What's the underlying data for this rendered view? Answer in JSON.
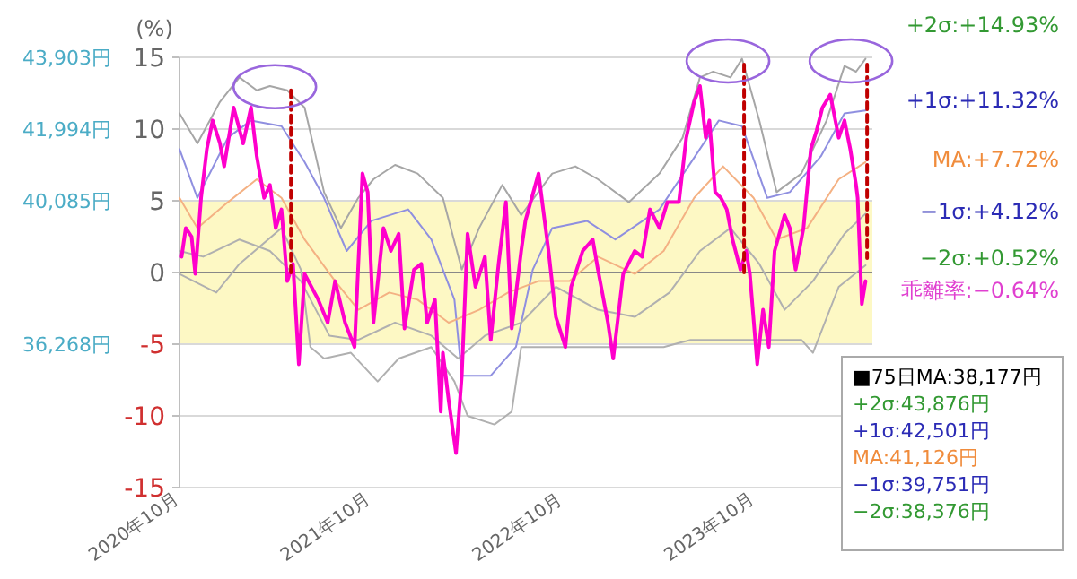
{
  "chart_data": {
    "type": "line",
    "ylabel": "(%)",
    "xlim": [
      "2020-10-01",
      "2024-05-11"
    ],
    "ylim": [
      -15,
      15
    ],
    "yticks": [
      -15,
      -10,
      -5,
      0,
      5,
      10,
      15
    ],
    "xticks": [
      {
        "value": "2020-10-01",
        "label": "2020年10月"
      },
      {
        "value": "2021-10-01",
        "label": "2021年10月"
      },
      {
        "value": "2022-10-01",
        "label": "2022年10月"
      },
      {
        "value": "2023-10-01",
        "label": "2023年10月"
      }
    ],
    "y2lim": [
      32450,
      43904
    ],
    "y2ticks": [
      {
        "value": 43903,
        "label": "43,903円"
      },
      {
        "value": 41994,
        "label": "41,994円"
      },
      {
        "value": 40085,
        "label": "40,085円"
      },
      {
        "value": 36268,
        "label": "36,268円"
      }
    ],
    "grid": "y",
    "bands": [
      {
        "axis": "y",
        "from": -5,
        "to": 5,
        "color": "#fdf8c4"
      }
    ],
    "series": [
      {
        "color": "#a6a6a6",
        "x": [
          "2020-10-01",
          "2020-11-04",
          "2020-12-17",
          "2021-01-23",
          "2021-02-25",
          "2021-03-22",
          "2021-04-24",
          "2021-05-27",
          "2021-07-03",
          "2021-08-04",
          "2021-09-06",
          "2021-10-05",
          "2021-11-15",
          "2021-12-28",
          "2022-02-14",
          "2022-03-22",
          "2022-04-24",
          "2022-06-07",
          "2022-07-13",
          "2022-09-10",
          "2022-10-24",
          "2022-12-06",
          "2023-02-03",
          "2023-04-02",
          "2023-05-16",
          "2023-06-18",
          "2023-07-13",
          "2023-08-15",
          "2023-09-06",
          "2023-10-09",
          "2023-11-11",
          "2023-12-28",
          "2024-02-14",
          "2024-03-19",
          "2024-04-10",
          "2024-04-28"
        ],
        "values": [
          11.1,
          9,
          11.9,
          13.6,
          12.7,
          13,
          12.7,
          11.5,
          5.6,
          3.1,
          5.2,
          6.5,
          7.5,
          6.9,
          5.2,
          0.2,
          3.1,
          6.1,
          4,
          6.9,
          7.4,
          6.5,
          4.9,
          6.9,
          9.4,
          13.6,
          14,
          13.6,
          14.9,
          10.6,
          5.6,
          6.9,
          10.6,
          14.4,
          14,
          14.9
        ]
      },
      {
        "color": "#8f8fe0",
        "x": [
          "2020-10-01",
          "2020-11-04",
          "2021-01-01",
          "2021-02-14",
          "2021-04-13",
          "2021-05-27",
          "2021-07-03",
          "2021-08-15",
          "2021-10-01",
          "2021-12-10",
          "2022-01-23",
          "2022-03-08",
          "2022-03-22",
          "2022-05-16",
          "2022-07-03",
          "2022-08-04",
          "2022-09-10",
          "2022-11-15",
          "2023-01-08",
          "2023-04-02",
          "2023-05-27",
          "2023-07-24",
          "2023-09-06",
          "2023-10-24",
          "2023-12-06",
          "2024-02-03",
          "2024-03-19",
          "2024-04-28"
        ],
        "values": [
          8.6,
          5.2,
          9.4,
          10.6,
          10.2,
          7.7,
          5.2,
          1.5,
          3.6,
          4.4,
          2.3,
          -1.9,
          -7.2,
          -7.2,
          -5.2,
          0.2,
          3.1,
          3.6,
          2.3,
          4.4,
          7.4,
          10.6,
          10.2,
          5.2,
          5.6,
          8.1,
          11.1,
          11.3
        ]
      },
      {
        "color": "#f4b183",
        "x": [
          "2020-10-01",
          "2020-11-04",
          "2021-01-01",
          "2021-02-25",
          "2021-04-13",
          "2021-05-27",
          "2021-07-24",
          "2021-09-06",
          "2021-11-04",
          "2021-12-28",
          "2022-02-25",
          "2022-04-24",
          "2022-06-18",
          "2022-08-15",
          "2022-10-13",
          "2022-12-06",
          "2023-02-14",
          "2023-04-10",
          "2023-06-07",
          "2023-08-01",
          "2023-09-28",
          "2023-11-11",
          "2024-01-08",
          "2024-03-08",
          "2024-04-28"
        ],
        "values": [
          5.2,
          3.1,
          4.9,
          6.5,
          5.2,
          2.3,
          -0.6,
          -2.6,
          -1.4,
          -1.9,
          -3.5,
          -2.6,
          -1.4,
          -0.6,
          -0.6,
          1.1,
          -0.1,
          1.5,
          5.2,
          7.4,
          5.2,
          2.3,
          3.1,
          6.5,
          7.7
        ]
      },
      {
        "color": "#b0b0b0",
        "x": [
          "2020-10-01",
          "2020-11-15",
          "2021-01-23",
          "2021-03-22",
          "2021-05-20",
          "2021-07-13",
          "2021-09-06",
          "2021-11-15",
          "2022-01-23",
          "2022-03-15",
          "2022-05-05",
          "2022-07-13",
          "2022-09-17",
          "2022-12-06",
          "2023-02-14",
          "2023-04-21",
          "2023-06-18",
          "2023-08-15",
          "2023-10-09",
          "2023-11-26",
          "2024-01-19",
          "2024-03-19",
          "2024-04-28"
        ],
        "values": [
          1.5,
          1.1,
          2.3,
          1.5,
          -0.6,
          -4.4,
          -4.7,
          -3.5,
          -4.4,
          -6,
          -4.4,
          -3.5,
          -1,
          -2.6,
          -3.1,
          -1.4,
          1.5,
          3.1,
          0.6,
          -2.6,
          -0.6,
          2.7,
          4.1
        ]
      },
      {
        "color": "#b0b0b0",
        "x": [
          "2020-10-01",
          "2020-12-10",
          "2021-01-23",
          "2021-04-13",
          "2021-05-20",
          "2021-06-07",
          "2021-07-03",
          "2021-08-23",
          "2021-10-13",
          "2021-11-22",
          "2022-01-23",
          "2022-03-08",
          "2022-04-02",
          "2022-05-23",
          "2022-06-25",
          "2022-07-13",
          "2022-08-15",
          "2022-09-28",
          "2023-01-08",
          "2023-04-10",
          "2023-05-31",
          "2023-12-28",
          "2024-01-19",
          "2024-03-08",
          "2024-04-28"
        ],
        "values": [
          -0.1,
          -1.4,
          0.6,
          3.1,
          0.2,
          -5.2,
          -6,
          -5.6,
          -7.6,
          -6,
          -5.2,
          -7.6,
          -10,
          -10.6,
          -9.7,
          -5.2,
          -5.2,
          -5.2,
          -5.2,
          -5.2,
          -4.7,
          -4.7,
          -5.6,
          -1,
          0.5
        ]
      },
      {
        "color": "#ff00cc",
        "x": [
          "2020-10-05",
          "2020-10-13",
          "2020-10-24",
          "2020-10-31",
          "2020-11-11",
          "2020-11-22",
          "2020-12-03",
          "2020-12-17",
          "2020-12-25",
          "2021-01-12",
          "2021-01-30",
          "2021-02-14",
          "2021-02-25",
          "2021-03-11",
          "2021-03-22",
          "2021-04-02",
          "2021-04-13",
          "2021-04-24",
          "2021-05-05",
          "2021-05-16",
          "2021-05-27",
          "2021-06-22",
          "2021-07-10",
          "2021-07-24",
          "2021-08-12",
          "2021-08-30",
          "2021-09-14",
          "2021-09-24",
          "2021-10-05",
          "2021-10-24",
          "2021-11-07",
          "2021-11-22",
          "2021-12-03",
          "2021-12-21",
          "2022-01-04",
          "2022-01-15",
          "2022-01-30",
          "2022-02-10",
          "2022-02-14",
          "2022-02-25",
          "2022-03-11",
          "2022-03-22",
          "2022-04-02",
          "2022-04-17",
          "2022-05-05",
          "2022-05-16",
          "2022-05-31",
          "2022-06-14",
          "2022-06-25",
          "2022-07-13",
          "2022-07-21",
          "2022-08-15",
          "2022-09-03",
          "2022-09-17",
          "2022-10-05",
          "2022-10-16",
          "2022-11-07",
          "2022-11-26",
          "2022-12-06",
          "2022-12-25",
          "2023-01-04",
          "2023-01-23",
          "2023-02-14",
          "2023-02-28",
          "2023-03-15",
          "2023-04-02",
          "2023-04-17",
          "2023-05-09",
          "2023-05-23",
          "2023-06-07",
          "2023-06-18",
          "2023-06-29",
          "2023-07-06",
          "2023-07-17",
          "2023-07-28",
          "2023-08-08",
          "2023-08-19",
          "2023-09-03",
          "2023-09-14",
          "2023-09-21",
          "2023-10-05",
          "2023-10-16",
          "2023-10-27",
          "2023-11-07",
          "2023-11-26",
          "2023-12-06",
          "2023-12-17",
          "2024-01-01",
          "2024-01-15",
          "2024-01-26",
          "2024-02-06",
          "2024-02-21",
          "2024-03-08",
          "2024-03-19",
          "2024-03-30",
          "2024-04-10",
          "2024-04-13",
          "2024-04-21",
          "2024-04-28"
        ],
        "values": [
          1.1,
          3.1,
          2.5,
          -0.1,
          5.2,
          8.6,
          10.6,
          9,
          7.4,
          11.5,
          9,
          11.5,
          8.1,
          5.2,
          6.1,
          3.1,
          4.4,
          -0.6,
          0.6,
          -6.4,
          -0.1,
          -1.9,
          -3.5,
          -0.6,
          -3.5,
          -5.2,
          6.9,
          5.6,
          -3.5,
          3.1,
          1.5,
          2.7,
          -3.9,
          0.2,
          0.6,
          -3.5,
          -1.9,
          -9.7,
          -5.6,
          -8.9,
          -12.6,
          -7.2,
          2.7,
          -1,
          1.1,
          -4.7,
          0.6,
          4.9,
          -3.9,
          1.5,
          3.6,
          6.9,
          1.5,
          -3.1,
          -5.2,
          -1,
          1.5,
          2.3,
          0.2,
          -3.5,
          -6,
          -0.1,
          1.5,
          1.1,
          4.4,
          3.1,
          4.9,
          4.9,
          9.4,
          11.9,
          13,
          9.4,
          10.6,
          5.6,
          5.2,
          4.4,
          2.3,
          0.2,
          1.5,
          -0.1,
          -6.4,
          -2.6,
          -5.2,
          1.5,
          4,
          3.1,
          0.2,
          3.1,
          8.6,
          9.9,
          11.5,
          12.4,
          9.4,
          10.6,
          8.6,
          6.1,
          5.2,
          -2.2,
          -0.6
        ]
      },
      {
        "color": "#c00000",
        "line_style": "dashed",
        "x": [
          "2021-05-01",
          "2021-05-01"
        ],
        "values": [
          12.7,
          0
        ]
      },
      {
        "color": "#c00000",
        "line_style": "dashed",
        "x": [
          "2023-09-10",
          "2023-09-10"
        ],
        "values": [
          14.5,
          0
        ]
      },
      {
        "color": "#c00000",
        "line_style": "dashed",
        "x": [
          "2024-05-01",
          "2024-05-01"
        ],
        "values": [
          14.5,
          1
        ]
      }
    ],
    "annotations": [
      "+2σ:+14.93%",
      "+1σ:+11.32%",
      "MA:+7.72%",
      "−1σ:+4.12%",
      "−2σ:+0.52%",
      "乖離率:−0.64%",
      "■75日MA:38,177円",
      "+2σ:43,876円",
      "+1σ:42,501円",
      "MA:41,126円",
      "−1σ:39,751円",
      "−2σ:38,376円"
    ]
  }
}
